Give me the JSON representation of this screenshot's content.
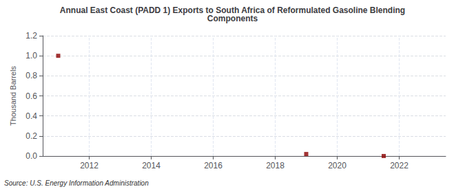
{
  "chart_data": {
    "type": "scatter",
    "title": "Annual East Coast (PADD 1) Exports to South Africa of Reformulated Gasoline Blending\nComponents",
    "ylabel": "Thousand Barrels",
    "annotation": "Source: U.S. Energy Information Administration",
    "x": [
      2011.0,
      2019.0,
      2021.5
    ],
    "values": [
      1.0,
      0.02,
      0.0
    ],
    "color": "#8b0000",
    "marker": "square",
    "xlim": [
      2010.5,
      2023.5
    ],
    "xticks": [
      2012,
      2014,
      2016,
      2018,
      2020,
      2022
    ],
    "ylim": [
      0.0,
      1.2
    ],
    "yticks": [
      {
        "value": 0.0,
        "label": "0.0"
      },
      0.2,
      0.4,
      0.6,
      0.8,
      {
        "value": 1.0,
        "label": "1.0"
      },
      1.2
    ],
    "grid": true
  }
}
